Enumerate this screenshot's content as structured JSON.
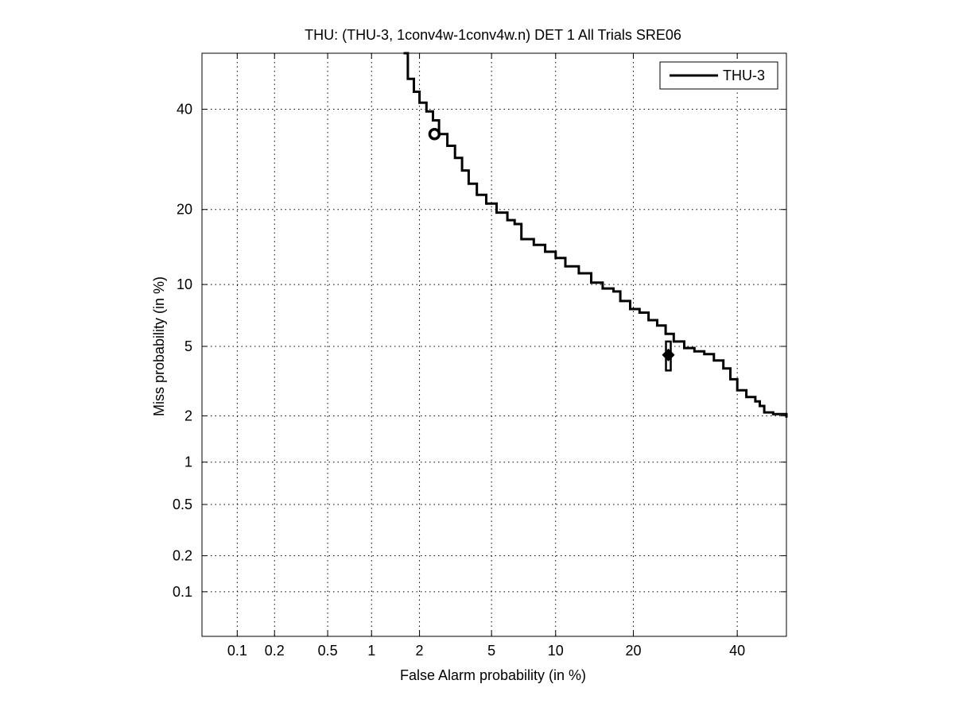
{
  "chart_data": {
    "type": "line",
    "title": "THU: (THU-3, 1conv4w-1conv4w.n) DET 1 All Trials SRE06",
    "xlabel": "False Alarm probability (in %)",
    "ylabel": "Miss probability (in %)",
    "xscale": "probit",
    "yscale": "probit",
    "xlim": [
      0.05,
      51
    ],
    "ylim": [
      0.04,
      53
    ],
    "xticks": [
      0.1,
      0.2,
      0.5,
      1,
      2,
      5,
      10,
      20,
      40
    ],
    "xtick_labels": [
      "0.1",
      "0.2",
      "0.5",
      "1",
      "2",
      "5",
      "10",
      "20",
      "40"
    ],
    "yticks": [
      0.1,
      0.2,
      0.5,
      1,
      2,
      5,
      10,
      20,
      40
    ],
    "ytick_labels": [
      "0.1",
      "0.2",
      "0.5",
      "1",
      "2",
      "5",
      "10",
      "20",
      "40"
    ],
    "grid": true,
    "legend": {
      "position": "top-right",
      "entries": [
        "THU-3"
      ]
    },
    "series": [
      {
        "name": "THU-3",
        "color": "#000000",
        "points": [
          [
            1.6,
            53
          ],
          [
            1.7,
            47
          ],
          [
            1.85,
            44
          ],
          [
            2.0,
            41.5
          ],
          [
            2.2,
            39.5
          ],
          [
            2.4,
            37.5
          ],
          [
            2.6,
            34.5
          ],
          [
            2.9,
            32
          ],
          [
            3.2,
            29.5
          ],
          [
            3.5,
            27
          ],
          [
            3.8,
            24.5
          ],
          [
            4.2,
            22.5
          ],
          [
            4.7,
            21
          ],
          [
            5.3,
            19.5
          ],
          [
            6.0,
            18.3
          ],
          [
            6.5,
            17.7
          ],
          [
            7.0,
            15.5
          ],
          [
            8.0,
            14.7
          ],
          [
            9.0,
            13.8
          ],
          [
            10.0,
            13.0
          ],
          [
            11.0,
            12.0
          ],
          [
            12.5,
            11.2
          ],
          [
            14.0,
            10.2
          ],
          [
            15.5,
            9.6
          ],
          [
            17.0,
            9.3
          ],
          [
            18.0,
            8.4
          ],
          [
            19.5,
            7.7
          ],
          [
            21.0,
            7.4
          ],
          [
            22.5,
            6.8
          ],
          [
            24.0,
            6.4
          ],
          [
            25.5,
            5.8
          ],
          [
            27.0,
            5.3
          ],
          [
            29.0,
            4.9
          ],
          [
            31.0,
            4.7
          ],
          [
            33.0,
            4.55
          ],
          [
            35.0,
            4.2
          ],
          [
            37.0,
            3.8
          ],
          [
            38.5,
            3.3
          ],
          [
            40.0,
            2.85
          ],
          [
            42.0,
            2.6
          ],
          [
            44.0,
            2.45
          ],
          [
            45.0,
            2.3
          ],
          [
            46.0,
            2.1
          ],
          [
            48.0,
            2.05
          ],
          [
            50.5,
            2.05
          ],
          [
            51,
            1.95
          ]
        ]
      }
    ],
    "markers": [
      {
        "name": "min-dcf-point",
        "shape": "circle",
        "x": 2.45,
        "y": 34.5
      },
      {
        "name": "actual-dcf-point",
        "shape": "diamond-with-interval",
        "x": 26.0,
        "y": 4.5,
        "y_low": 3.7,
        "y_high": 5.3
      }
    ]
  }
}
